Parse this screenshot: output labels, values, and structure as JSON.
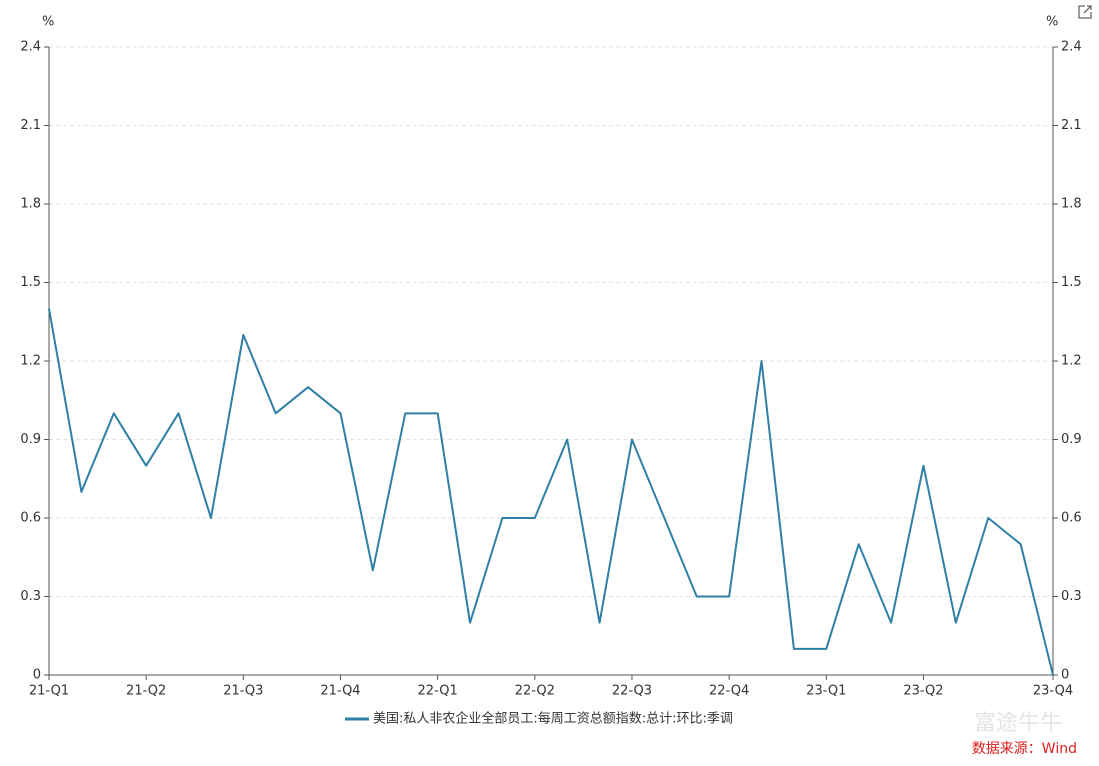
{
  "chart_data": {
    "type": "line",
    "y_unit": "%",
    "y2_unit": "%",
    "categories": [
      "21-Q1",
      null,
      null,
      "21-Q2",
      null,
      null,
      "21-Q3",
      null,
      null,
      "21-Q4",
      null,
      null,
      "22-Q1",
      null,
      null,
      "22-Q2",
      null,
      null,
      "22-Q3",
      null,
      null,
      "22-Q4",
      null,
      null,
      "23-Q1",
      null,
      null,
      "23-Q2",
      null,
      null,
      null,
      "23-Q4"
    ],
    "series": [
      {
        "name": "美国:私人非农企业全部员工:每周工资总额指数:总计:环比:季调",
        "color": "#2f7fa6",
        "values": [
          1.4,
          0.7,
          1.0,
          0.8,
          1.0,
          0.6,
          1.3,
          1.0,
          1.1,
          1.0,
          0.4,
          1.0,
          1.0,
          0.2,
          0.6,
          0.6,
          0.9,
          0.2,
          0.9,
          0.6,
          0.3,
          0.3,
          1.2,
          0.1,
          0.1,
          0.5,
          0.2,
          0.8,
          0.2,
          0.6,
          0.5,
          0
        ]
      }
    ],
    "ylim": [
      0,
      2.4
    ],
    "yticks": [
      0,
      0.3,
      0.6,
      0.9,
      1.2,
      1.5,
      1.8,
      2.1,
      2.4
    ],
    "y2lim": [
      0,
      2.4
    ],
    "y2ticks": [
      0,
      0.3,
      0.6,
      0.9,
      1.2,
      1.5,
      1.8,
      2.1,
      2.4
    ],
    "grid": true,
    "source": "数据来源：Wind",
    "watermark": "富途牛牛"
  }
}
